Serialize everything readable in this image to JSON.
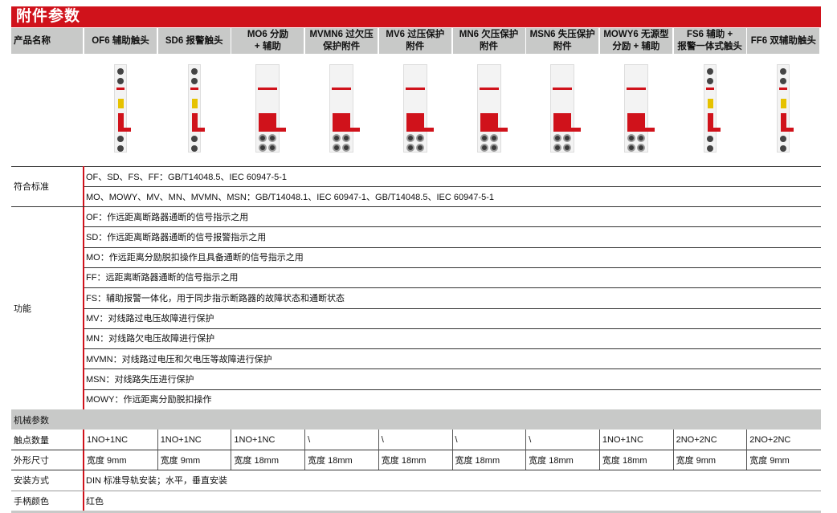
{
  "title": "附件参数",
  "header_label": "产品名称",
  "products": [
    {
      "name": "OF6 辅助触头",
      "contacts": "1NO+1NC",
      "size": "宽度 9mm",
      "form": "narrow",
      "window": "#e6c200"
    },
    {
      "name": "SD6 报警触头",
      "contacts": "1NO+1NC",
      "size": "宽度 9mm",
      "form": "narrow",
      "window": "#e6c200"
    },
    {
      "name": "MO6 分励\n+ 辅助",
      "contacts": "1NO+1NC",
      "size": "宽度 18mm",
      "form": "wide",
      "window": ""
    },
    {
      "name": "MVMN6 过欠压\n保护附件",
      "contacts": "\\",
      "size": "宽度 18mm",
      "form": "wide",
      "window": ""
    },
    {
      "name": "MV6 过压保护\n附件",
      "contacts": "\\",
      "size": "宽度 18mm",
      "form": "wide",
      "window": ""
    },
    {
      "name": "MN6 欠压保护\n附件",
      "contacts": "\\",
      "size": "宽度 18mm",
      "form": "wide",
      "window": ""
    },
    {
      "name": "MSN6 失压保护\n附件",
      "contacts": "\\",
      "size": "宽度 18mm",
      "form": "wide",
      "window": ""
    },
    {
      "name": "MOWY6 无源型\n分励 + 辅助",
      "contacts": "1NO+1NC",
      "size": "宽度 18mm",
      "form": "wide",
      "window": ""
    },
    {
      "name": "FS6 辅助 +\n报警一体式触头",
      "contacts": "2NO+2NC",
      "size": "宽度 9mm",
      "form": "narrow",
      "window": "#e6c200"
    },
    {
      "name": "FF6 双辅助触头",
      "contacts": "2NO+2NC",
      "size": "宽度 9mm",
      "form": "narrow",
      "window": "#e6c200"
    }
  ],
  "standards": {
    "label": "符合标准",
    "lines": [
      "OF、SD、FS、FF：GB/T14048.5、IEC 60947-5-1",
      "MO、MOWY、MV、MN、MVMN、MSN：GB/T14048.1、IEC 60947-1、GB/T14048.5、IEC 60947-5-1"
    ]
  },
  "functions": {
    "label": "功能",
    "lines": [
      "OF：作远距离断路器通断的信号指示之用",
      "SD：作远距离断路器通断的信号报警指示之用",
      "MO：作远距离分励脱扣操作且具备通断的信号指示之用",
      "FF：远距离断路器通断的信号指示之用",
      "FS：辅助报警一体化，用于同步指示断路器的故障状态和通断状态",
      "MV：对线路过电压故障进行保护",
      "MN：对线路欠电压故障进行保护",
      "MVMN：对线路过电压和欠电压等故障进行保护",
      "MSN：对线路失压进行保护",
      "MOWY：作远距离分励脱扣操作"
    ]
  },
  "mechanical": {
    "section_label": "机械参数",
    "contacts_label": "触点数量",
    "size_label": "外形尺寸",
    "mounting_label": "安装方式",
    "mounting_value": "DIN 标准导轨安装；水平，垂直安装",
    "handle_label": "手柄颜色",
    "handle_value": "红色"
  },
  "colors": {
    "brand_red": "#d0121b",
    "header_gray": "#c8c9c8"
  }
}
